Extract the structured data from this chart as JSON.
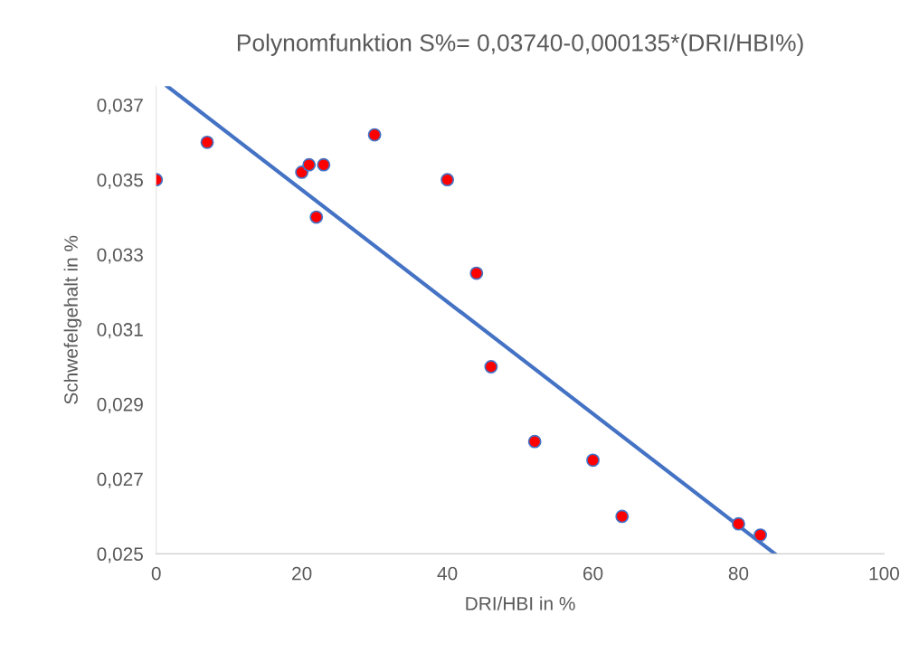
{
  "chart_data": {
    "type": "scatter",
    "title": "Polynomfunktion S%= 0,03740-0,000135*(DRI/HBI%)",
    "xlabel": "DRI/HBI in %",
    "ylabel": "Schwefelgehalt in %",
    "xlim": [
      0,
      100
    ],
    "xticks": [
      0,
      20,
      40,
      60,
      80,
      100
    ],
    "ylim": [
      0.025,
      0.0375
    ],
    "yticks": [
      {
        "value": 0.025,
        "label": "0,025"
      },
      {
        "value": 0.027,
        "label": "0,027"
      },
      {
        "value": 0.029,
        "label": "0,029"
      },
      {
        "value": 0.031,
        "label": "0,031"
      },
      {
        "value": 0.033,
        "label": "0,033"
      },
      {
        "value": 0.035,
        "label": "0,035"
      },
      {
        "value": 0.037,
        "label": "0,037"
      }
    ],
    "grid": false,
    "legend": false,
    "series": [
      {
        "color": "#ff0000",
        "marker": "circle",
        "x": [
          0,
          7,
          20,
          21,
          23,
          22,
          30,
          40,
          44,
          46,
          52,
          60,
          64,
          80,
          83
        ],
        "values": [
          0.035,
          0.036,
          0.0352,
          0.0354,
          0.0354,
          0.034,
          0.0362,
          0.035,
          0.0325,
          0.03,
          0.028,
          0.0275,
          0.026,
          0.0258,
          0.0255
        ]
      },
      {
        "type": "line",
        "color": "#4472c4",
        "line_style": "solid",
        "marker": "none",
        "x": [
          1.5,
          85
        ],
        "values": [
          0.0375,
          0.025
        ]
      }
    ]
  }
}
